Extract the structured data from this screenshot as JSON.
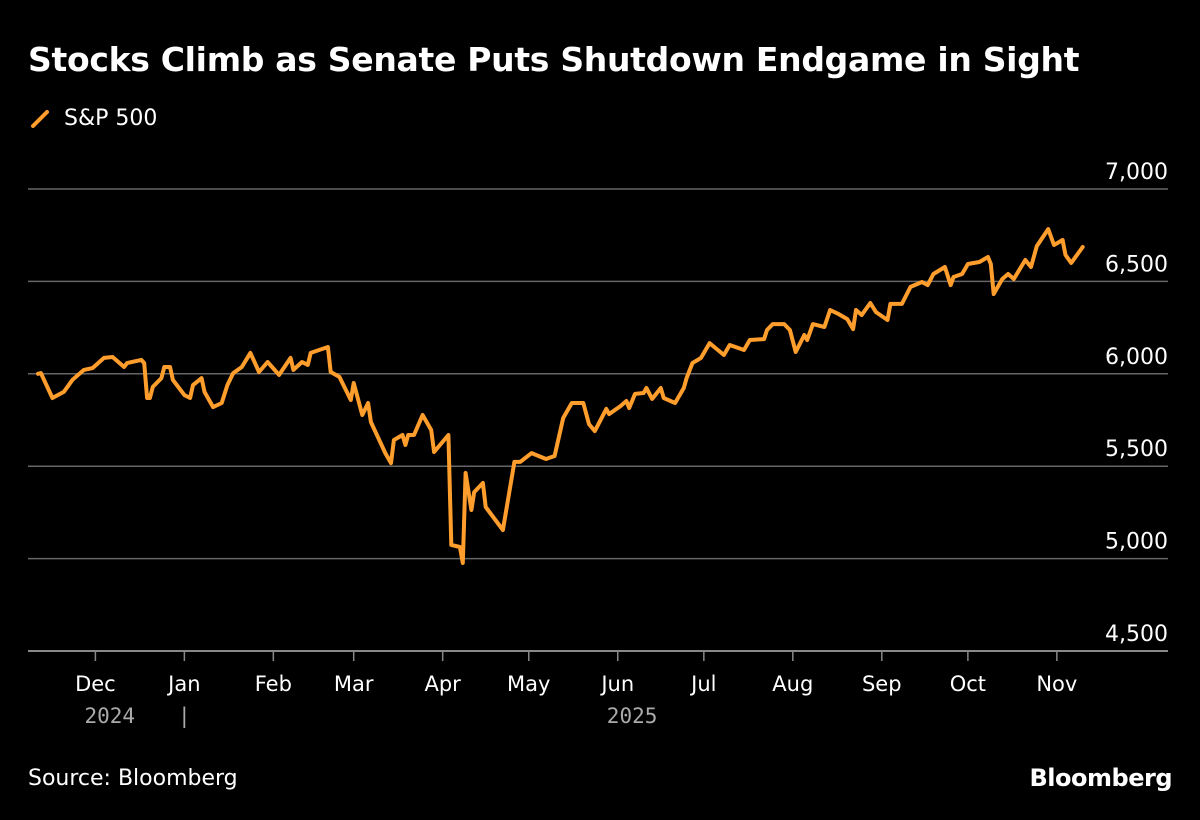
{
  "title": "Stocks Climb as Senate Puts Shutdown Endgame in Sight",
  "source": "Source: Bloomberg",
  "logo": "Bloomberg",
  "colors": {
    "series": "#FF9E2C",
    "grid": "#666666",
    "background": "#000000",
    "year_label": "#aaaaaa"
  },
  "chart_data": {
    "type": "line",
    "title": "Stocks Climb as Senate Puts Shutdown Endgame in Sight",
    "xlabel": "",
    "ylabel": "",
    "start_date": "2024-11-11",
    "x_unit": "days since start_date",
    "ylim": [
      4500,
      7000
    ],
    "yticks": [
      4500,
      5000,
      5500,
      6000,
      6500,
      7000
    ],
    "ytick_labels": [
      "4,500",
      "5,000",
      "5,500",
      "6,000",
      "6,500",
      "7,000"
    ],
    "grid": true,
    "legend_placement": "top-left",
    "xticks": [
      {
        "day": 20,
        "label": "Dec"
      },
      {
        "day": 51,
        "label": "Jan"
      },
      {
        "day": 82,
        "label": "Feb"
      },
      {
        "day": 110,
        "label": "Mar"
      },
      {
        "day": 141,
        "label": "Apr"
      },
      {
        "day": 171,
        "label": "May"
      },
      {
        "day": 202,
        "label": "Jun"
      },
      {
        "day": 232,
        "label": "Jul"
      },
      {
        "day": 263,
        "label": "Aug"
      },
      {
        "day": 294,
        "label": "Sep"
      },
      {
        "day": 324,
        "label": "Oct"
      },
      {
        "day": 355,
        "label": "Nov"
      }
    ],
    "year_labels": [
      {
        "day": 25,
        "label": "2024"
      },
      {
        "day": 51,
        "label": "|"
      },
      {
        "day": 207,
        "label": "2025"
      }
    ],
    "series": [
      {
        "name": "S&P 500",
        "points": [
          [
            0,
            6000
          ],
          [
            1,
            6004
          ],
          [
            5,
            5869
          ],
          [
            9,
            5902
          ],
          [
            12,
            5967
          ],
          [
            16,
            6021
          ],
          [
            19,
            6031
          ],
          [
            23,
            6086
          ],
          [
            26,
            6091
          ],
          [
            30,
            6037
          ],
          [
            31,
            6058
          ],
          [
            36,
            6075
          ],
          [
            37,
            6058
          ],
          [
            38,
            5869
          ],
          [
            39,
            5869
          ],
          [
            40,
            5929
          ],
          [
            43,
            5977
          ],
          [
            44,
            6037
          ],
          [
            46,
            6037
          ],
          [
            47,
            5967
          ],
          [
            51,
            5885
          ],
          [
            53,
            5869
          ],
          [
            54,
            5939
          ],
          [
            57,
            5977
          ],
          [
            58,
            5902
          ],
          [
            61,
            5820
          ],
          [
            64,
            5842
          ],
          [
            66,
            5939
          ],
          [
            68,
            6004
          ],
          [
            71,
            6037
          ],
          [
            74,
            6113
          ],
          [
            77,
            6010
          ],
          [
            80,
            6064
          ],
          [
            84,
            5994
          ],
          [
            88,
            6086
          ],
          [
            89,
            6021
          ],
          [
            92,
            6064
          ],
          [
            94,
            6048
          ],
          [
            95,
            6113
          ],
          [
            101,
            6145
          ],
          [
            102,
            6010
          ],
          [
            105,
            5983
          ],
          [
            109,
            5858
          ],
          [
            110,
            5950
          ],
          [
            113,
            5777
          ],
          [
            115,
            5842
          ],
          [
            116,
            5739
          ],
          [
            121,
            5571
          ],
          [
            123,
            5517
          ],
          [
            124,
            5642
          ],
          [
            127,
            5669
          ],
          [
            128,
            5615
          ],
          [
            129,
            5669
          ],
          [
            131,
            5669
          ],
          [
            134,
            5777
          ],
          [
            137,
            5696
          ],
          [
            138,
            5577
          ],
          [
            143,
            5669
          ],
          [
            144,
            5074
          ],
          [
            147,
            5063
          ],
          [
            148,
            4976
          ],
          [
            149,
            5463
          ],
          [
            151,
            5263
          ],
          [
            152,
            5360
          ],
          [
            155,
            5409
          ],
          [
            156,
            5279
          ],
          [
            162,
            5155
          ],
          [
            166,
            5523
          ],
          [
            168,
            5523
          ],
          [
            172,
            5571
          ],
          [
            177,
            5539
          ],
          [
            180,
            5555
          ],
          [
            183,
            5761
          ],
          [
            186,
            5842
          ],
          [
            190,
            5842
          ],
          [
            192,
            5728
          ],
          [
            194,
            5690
          ],
          [
            198,
            5810
          ],
          [
            199,
            5782
          ],
          [
            203,
            5826
          ],
          [
            205,
            5853
          ],
          [
            206,
            5815
          ],
          [
            208,
            5891
          ],
          [
            211,
            5896
          ],
          [
            212,
            5923
          ],
          [
            214,
            5864
          ],
          [
            217,
            5923
          ],
          [
            218,
            5869
          ],
          [
            222,
            5842
          ],
          [
            225,
            5923
          ],
          [
            226,
            5977
          ],
          [
            228,
            6058
          ],
          [
            231,
            6086
          ],
          [
            234,
            6166
          ],
          [
            239,
            6102
          ],
          [
            241,
            6156
          ],
          [
            246,
            6129
          ],
          [
            248,
            6183
          ],
          [
            253,
            6188
          ],
          [
            254,
            6237
          ],
          [
            256,
            6269
          ],
          [
            260,
            6269
          ],
          [
            262,
            6237
          ],
          [
            264,
            6118
          ],
          [
            267,
            6210
          ],
          [
            268,
            6183
          ],
          [
            270,
            6269
          ],
          [
            274,
            6253
          ],
          [
            276,
            6345
          ],
          [
            279,
            6323
          ],
          [
            282,
            6296
          ],
          [
            284,
            6242
          ],
          [
            285,
            6345
          ],
          [
            287,
            6318
          ],
          [
            290,
            6383
          ],
          [
            292,
            6334
          ],
          [
            296,
            6291
          ],
          [
            297,
            6378
          ],
          [
            301,
            6378
          ],
          [
            304,
            6470
          ],
          [
            308,
            6497
          ],
          [
            310,
            6480
          ],
          [
            312,
            6540
          ],
          [
            316,
            6578
          ],
          [
            318,
            6480
          ],
          [
            319,
            6524
          ],
          [
            322,
            6540
          ],
          [
            324,
            6594
          ],
          [
            328,
            6605
          ],
          [
            331,
            6632
          ],
          [
            332,
            6594
          ],
          [
            333,
            6432
          ],
          [
            336,
            6513
          ],
          [
            338,
            6540
          ],
          [
            340,
            6513
          ],
          [
            344,
            6616
          ],
          [
            346,
            6578
          ],
          [
            348,
            6691
          ],
          [
            352,
            6783
          ],
          [
            354,
            6697
          ],
          [
            357,
            6724
          ],
          [
            358,
            6643
          ],
          [
            360,
            6600
          ],
          [
            364,
            6686
          ]
        ]
      }
    ]
  }
}
